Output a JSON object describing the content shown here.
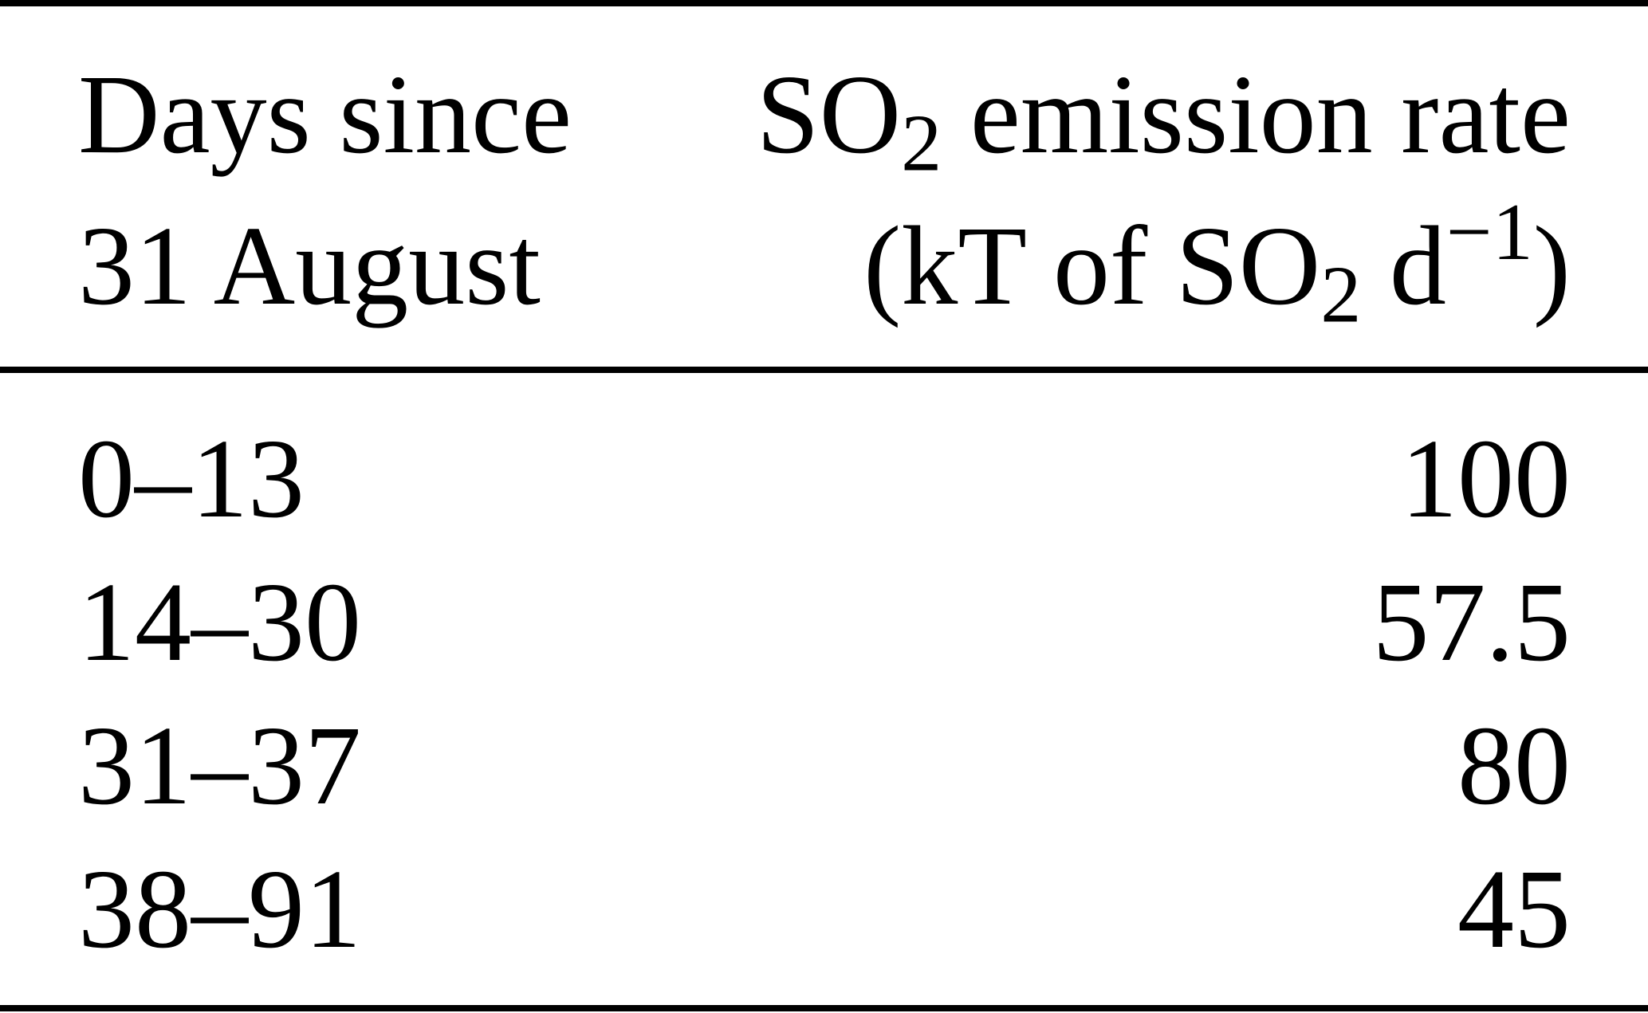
{
  "colors": {
    "background": "#ffffff",
    "text": "#000000",
    "rule": "#000000"
  },
  "table": {
    "header": {
      "col1_line1": "Days since",
      "col1_line2": "31 August",
      "col2_line1_pre": "SO",
      "col2_line1_sub": "2",
      "col2_line1_post": " emission rate",
      "col2_line2_pre": "(kT of SO",
      "col2_line2_sub": "2",
      "col2_line2_mid": " d",
      "col2_line2_sup": "−1",
      "col2_line2_post": ")"
    },
    "rows": [
      {
        "days": "0–13",
        "rate": "100"
      },
      {
        "days": "14–30",
        "rate": "57.5"
      },
      {
        "days": "31–37",
        "rate": "80"
      },
      {
        "days": "38–91",
        "rate": "45"
      }
    ]
  }
}
